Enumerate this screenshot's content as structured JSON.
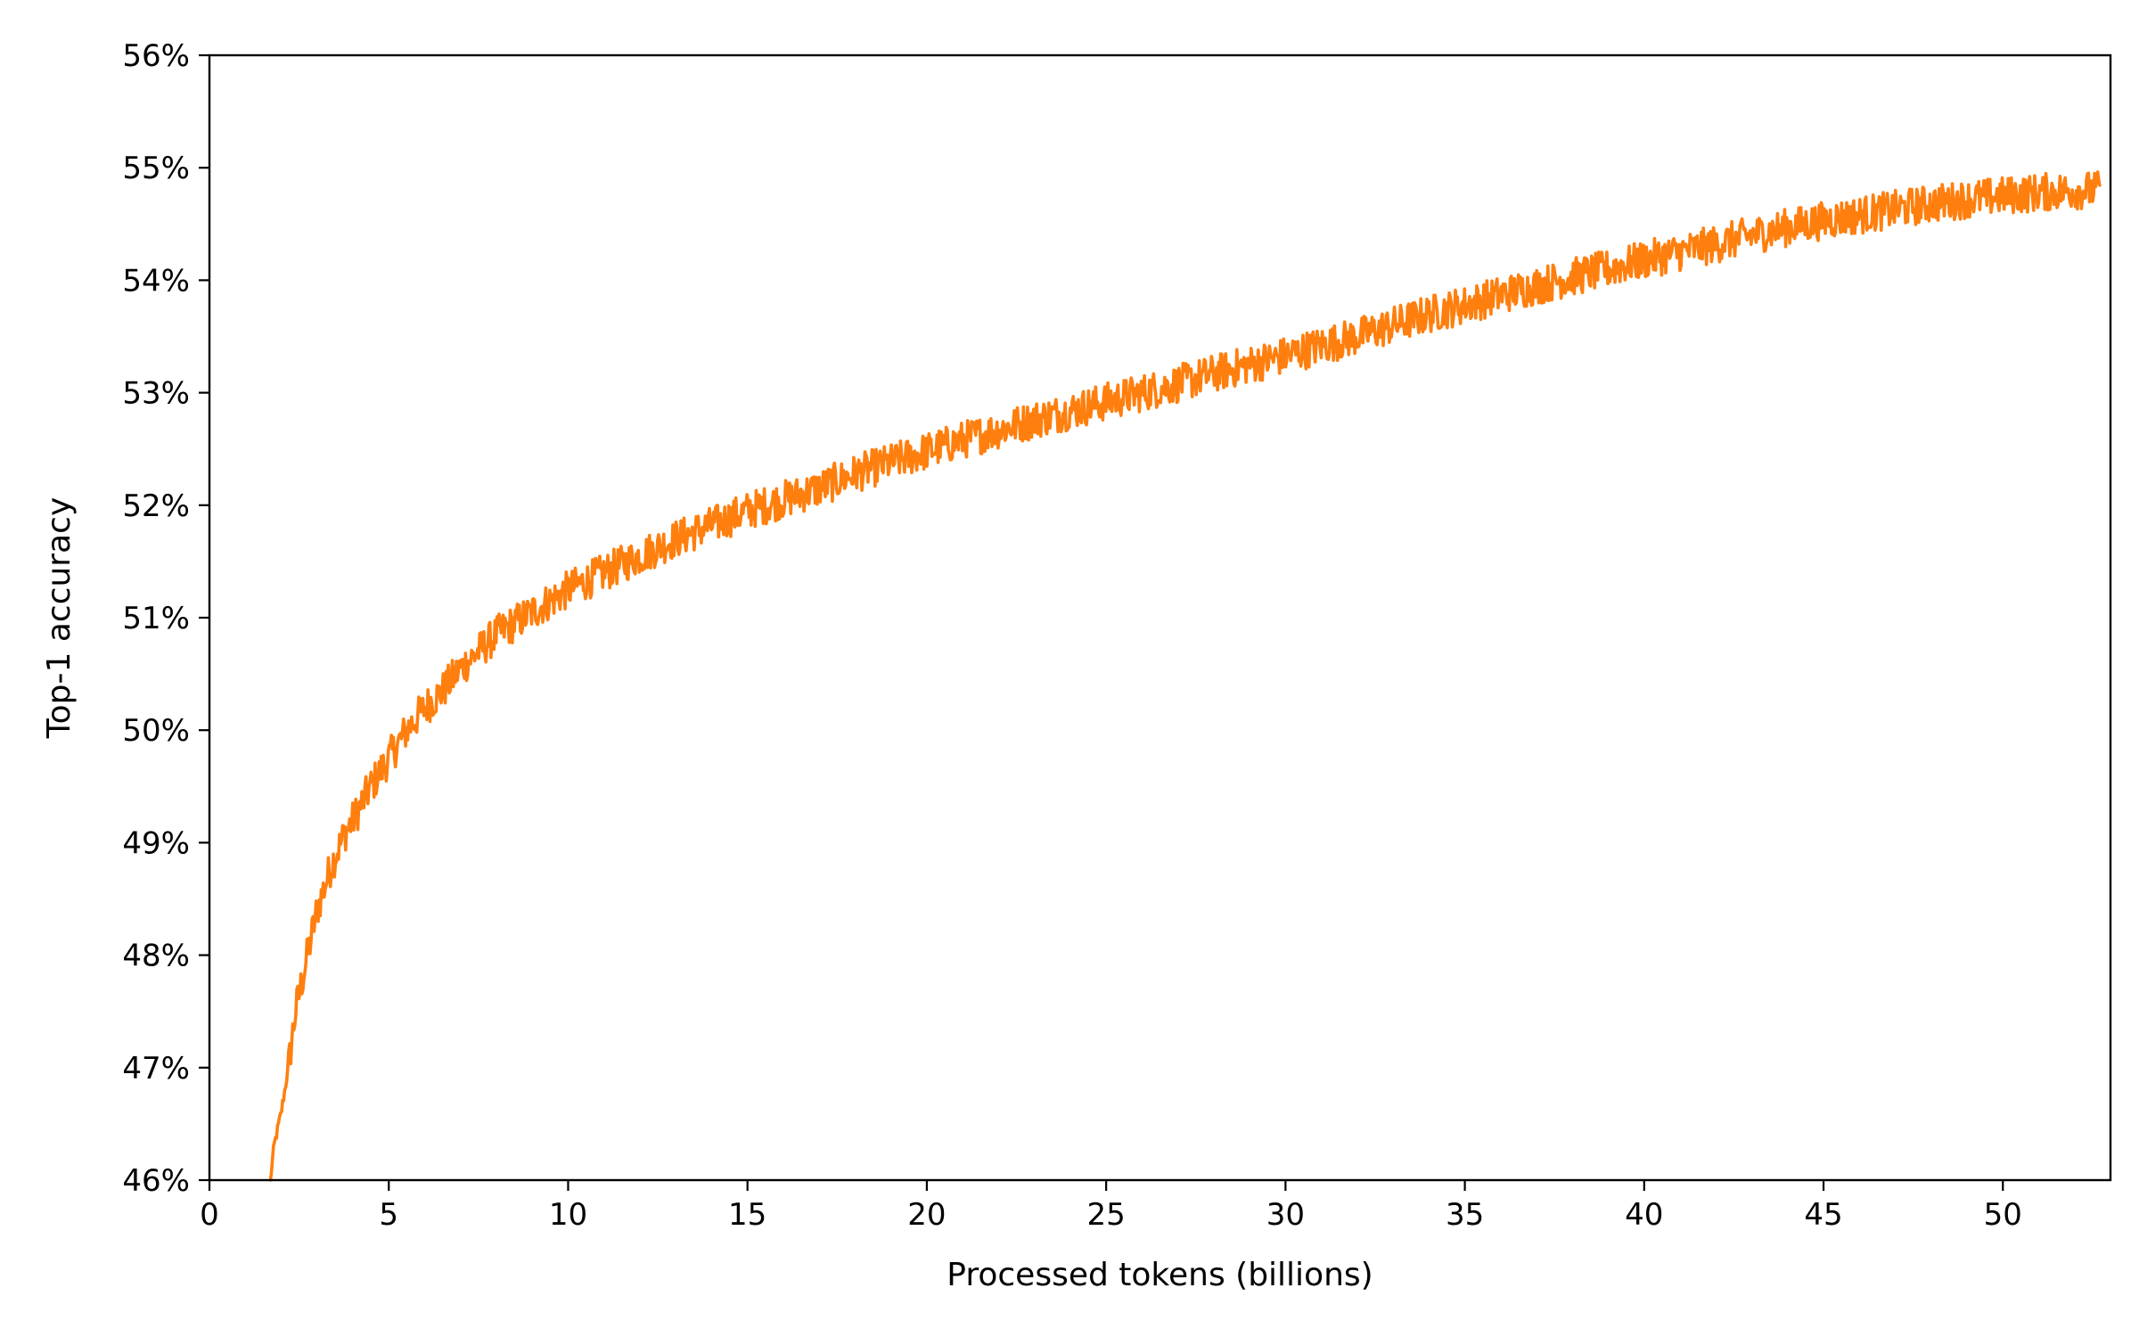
{
  "chart_data": {
    "type": "line",
    "title": "",
    "xlabel": "Processed tokens (billions)",
    "ylabel": "Top-1 accuracy",
    "xlim": [
      0,
      53
    ],
    "ylim": [
      46,
      56
    ],
    "x_ticks": [
      0,
      5,
      10,
      15,
      20,
      25,
      30,
      35,
      40,
      45,
      50
    ],
    "x_tick_labels": [
      "0",
      "5",
      "10",
      "15",
      "20",
      "25",
      "30",
      "35",
      "40",
      "45",
      "50"
    ],
    "y_ticks": [
      46,
      47,
      48,
      49,
      50,
      51,
      52,
      53,
      54,
      55,
      56
    ],
    "y_tick_labels": [
      "46%",
      "47%",
      "48%",
      "49%",
      "50%",
      "51%",
      "52%",
      "53%",
      "54%",
      "55%",
      "56%"
    ],
    "grid": false,
    "legend": "none",
    "series": [
      {
        "color": "#ff7f0e",
        "x": [
          1.7,
          1.8,
          2.0,
          2.2,
          2.4,
          2.6,
          2.8,
          3.0,
          3.2,
          3.4,
          3.6,
          3.8,
          4.0,
          4.5,
          5.0,
          5.5,
          6.0,
          6.5,
          7.0,
          7.5,
          8.0,
          8.5,
          9.0,
          9.5,
          10.0,
          11.0,
          12.0,
          13.0,
          14.0,
          15.0,
          16.0,
          17.0,
          18.0,
          19.0,
          20.0,
          21.0,
          22.0,
          23.0,
          24.0,
          25.0,
          26.0,
          27.0,
          28.0,
          29.0,
          30.0,
          31.0,
          32.0,
          33.0,
          34.0,
          35.0,
          36.0,
          37.0,
          38.0,
          39.0,
          40.0,
          41.0,
          42.0,
          43.0,
          44.0,
          45.0,
          46.0,
          47.0,
          48.0,
          49.0,
          50.0,
          51.0,
          52.0,
          52.7
        ],
        "y": [
          46.0,
          46.3,
          46.6,
          47.0,
          47.5,
          47.8,
          48.1,
          48.4,
          48.6,
          48.8,
          48.95,
          49.1,
          49.2,
          49.5,
          49.75,
          50.0,
          50.2,
          50.35,
          50.55,
          50.7,
          50.85,
          50.95,
          51.05,
          51.15,
          51.25,
          51.4,
          51.55,
          51.7,
          51.82,
          51.95,
          52.05,
          52.15,
          52.28,
          52.38,
          52.48,
          52.58,
          52.67,
          52.76,
          52.84,
          52.92,
          53.0,
          53.08,
          53.17,
          53.25,
          53.33,
          53.42,
          53.5,
          53.6,
          53.7,
          53.78,
          53.87,
          53.95,
          54.03,
          54.1,
          54.18,
          54.25,
          54.32,
          54.4,
          54.47,
          54.53,
          54.58,
          54.63,
          54.68,
          54.72,
          54.75,
          54.78,
          54.8,
          54.8
        ]
      }
    ]
  }
}
